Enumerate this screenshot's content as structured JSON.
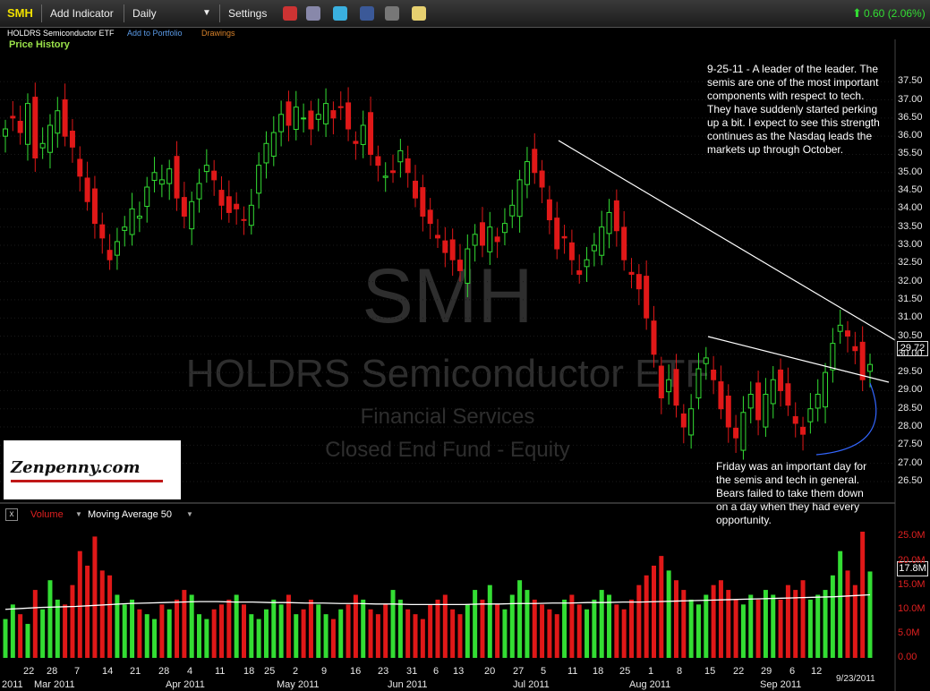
{
  "toolbar": {
    "ticker": "SMH",
    "add_indicator": "Add Indicator",
    "period": "Daily",
    "settings": "Settings",
    "change": "0.60 (2.06%)",
    "change_color": "#33dd33"
  },
  "subheader": {
    "name": "HOLDRS Semiconductor ETF",
    "add_portfolio": "Add to Portfolio",
    "drawings": "Drawings"
  },
  "panel_title": "Price History",
  "watermark": {
    "ticker": "SMH",
    "name": "HOLDRS Semiconductor ETF",
    "sector": "Financial Services",
    "type": "Closed End Fund - Equity"
  },
  "logo_text": "Zenpenny.com",
  "notes": {
    "top": "9-25-11 - A leader of the leader. The semis are one of the most important components with respect to tech. They have suddenly started perking up a bit. I expect to see this strength continues as the Nasdaq leads the markets up through October.",
    "bottom": "Friday was an important day for the semis and tech in general. Bears failed to take them down on a day when they had every opportunity."
  },
  "volume_header": {
    "close": "x",
    "label": "Volume",
    "ma": "Moving Average 50"
  },
  "last_price": "29.72",
  "last_volume": "17.8M",
  "end_date": "9/23/2011",
  "chart_data": {
    "type": "candlestick",
    "price_axis": {
      "ticks": [
        "37.50",
        "37.00",
        "36.50",
        "36.00",
        "35.50",
        "35.00",
        "34.50",
        "34.00",
        "33.50",
        "33.00",
        "32.50",
        "32.00",
        "31.50",
        "31.00",
        "30.50",
        "30.00",
        "29.50",
        "29.00",
        "28.50",
        "28.00",
        "27.50",
        "27.00",
        "26.50"
      ],
      "range": [
        26.4,
        37.9
      ]
    },
    "volume_axis": {
      "ticks": [
        "25.0M",
        "20.0M",
        "15.0M",
        "10.0M",
        "5.0M",
        "0.00"
      ],
      "range": [
        0,
        26
      ]
    },
    "x_day_labels": [
      "22",
      "28",
      "7",
      "14",
      "21",
      "28",
      "4",
      "11",
      "18",
      "25",
      "2",
      "9",
      "16",
      "23",
      "31",
      "6",
      "13",
      "20",
      "27",
      "5",
      "11",
      "18",
      "25",
      "1",
      "8",
      "15",
      "22",
      "29",
      "6",
      "12"
    ],
    "month_labels": [
      "2011",
      "Mar 2011",
      "Apr 2011",
      "May 2011",
      "Jun 2011",
      "Jul 2011",
      "Aug 2011",
      "Sep 2011"
    ],
    "closes": [
      36.2,
      36.5,
      36.1,
      36.9,
      35.4,
      35.8,
      36.3,
      36.7,
      36.0,
      35.7,
      34.9,
      34.2,
      33.6,
      33.2,
      32.6,
      33.1,
      33.5,
      34.0,
      33.8,
      34.6,
      35.0,
      34.8,
      35.1,
      34.3,
      33.8,
      34.2,
      34.7,
      35.2,
      34.8,
      34.1,
      33.9,
      34.0,
      33.7,
      34.1,
      35.2,
      35.8,
      36.1,
      36.6,
      36.3,
      36.8,
      36.5,
      36.2,
      36.6,
      36.9,
      36.5,
      36.8,
      36.2,
      35.8,
      36.3,
      35.5,
      35.2,
      34.9,
      35.0,
      35.6,
      35.0,
      34.3,
      33.8,
      33.6,
      33.2,
      32.8,
      32.6,
      32.3,
      32.9,
      33.3,
      33.0,
      33.5,
      33.1,
      33.6,
      34.1,
      34.8,
      35.3,
      35.0,
      34.6,
      33.7,
      32.9,
      33.2,
      32.6,
      32.2,
      32.6,
      33.0,
      33.5,
      33.9,
      33.4,
      32.6,
      32.2,
      31.8,
      31.0,
      30.0,
      28.8,
      29.3,
      28.6,
      28.0,
      28.5,
      29.6,
      29.9,
      29.3,
      28.5,
      28.0,
      27.7,
      28.4,
      28.9,
      28.2,
      28.9,
      29.3,
      29.0,
      28.6,
      28.1,
      27.8,
      28.5,
      28.9,
      29.5,
      30.3,
      30.8,
      30.5,
      30.1,
      29.3,
      29.72
    ],
    "volumes": [
      8,
      11,
      9,
      7,
      14,
      10,
      16,
      12,
      11,
      15,
      22,
      19,
      25,
      18,
      17,
      13,
      11,
      12,
      10,
      9,
      8,
      11,
      10,
      12,
      14,
      13,
      9,
      8,
      10,
      11,
      12,
      13,
      11,
      9,
      8,
      10,
      12,
      11,
      13,
      9,
      10,
      12,
      11,
      9,
      8,
      10,
      11,
      13,
      12,
      10,
      9,
      11,
      14,
      12,
      10,
      9,
      8,
      11,
      12,
      13,
      10,
      9,
      11,
      14,
      12,
      15,
      11,
      10,
      13,
      16,
      14,
      12,
      11,
      10,
      9,
      12,
      13,
      11,
      10,
      12,
      14,
      13,
      11,
      10,
      12,
      15,
      17,
      19,
      21,
      18,
      16,
      14,
      12,
      11,
      13,
      15,
      16,
      14,
      12,
      11,
      13,
      12,
      14,
      13,
      12,
      15,
      14,
      16,
      12,
      13,
      14,
      17,
      22,
      18,
      15,
      26,
      17.8
    ],
    "ma50": [
      10,
      10.2,
      10.4,
      10.5,
      10.6,
      10.8,
      11,
      11.2,
      11.3,
      11.4,
      11.5,
      11.6,
      11.6,
      11.5,
      11.5,
      11.4,
      11.4,
      11.3,
      11.3,
      11.2,
      11.2,
      11.1,
      11.1,
      11,
      11,
      11,
      11,
      11.1,
      11.1,
      11.2,
      11.2,
      11.3,
      11.3,
      11.4,
      11.4,
      11.5,
      11.5,
      11.6,
      11.7,
      11.8,
      11.9,
      12,
      12.1,
      12.2,
      12.3,
      12.4,
      12.5,
      12.6,
      12.8,
      13
    ]
  }
}
